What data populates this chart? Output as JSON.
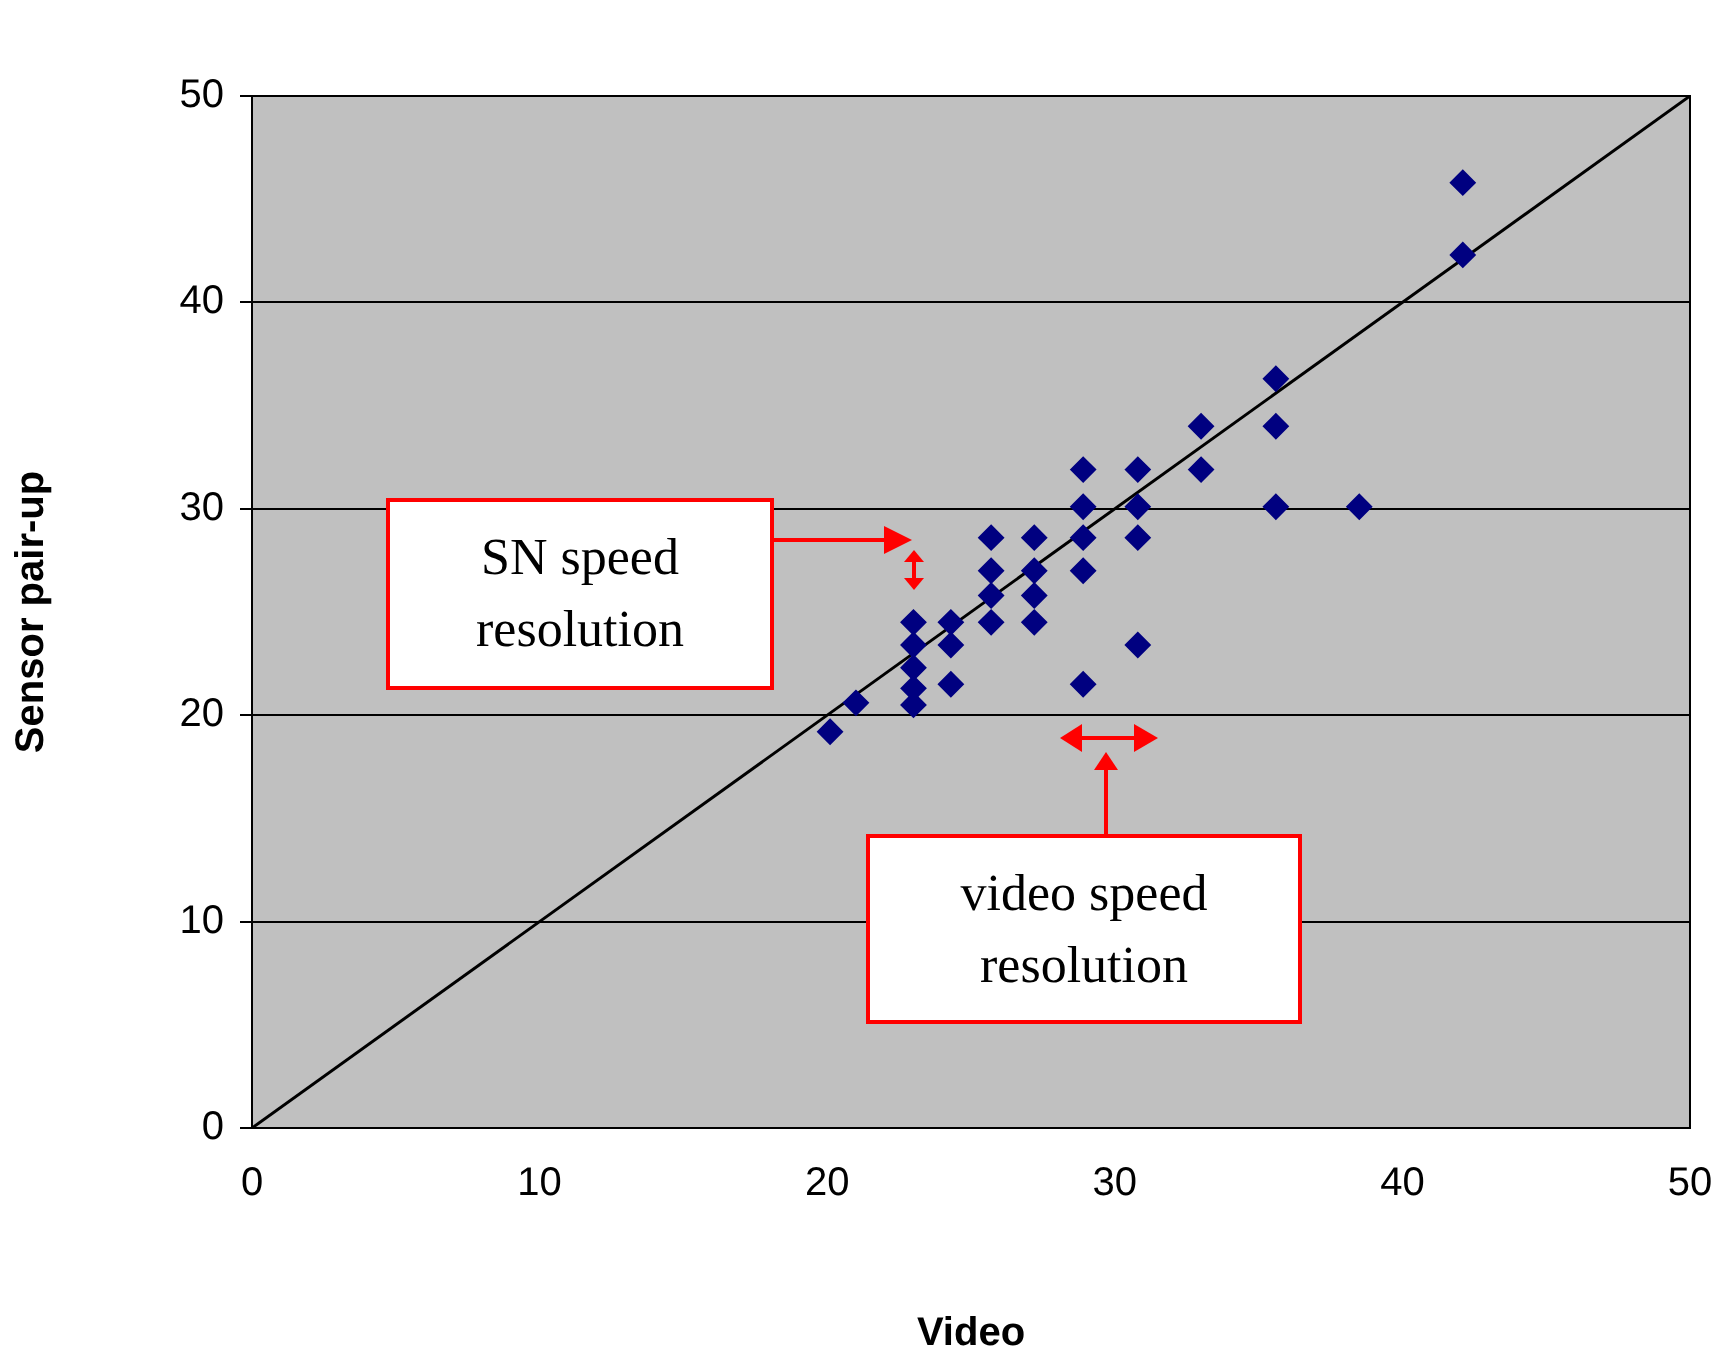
{
  "chart_data": {
    "type": "scatter",
    "xlabel": "Video",
    "ylabel": "Sensor pair-up",
    "x": [
      20.1,
      21.0,
      23.0,
      23.0,
      23.0,
      23.0,
      23.0,
      24.3,
      24.3,
      24.3,
      25.7,
      25.7,
      25.7,
      25.7,
      27.2,
      27.2,
      27.2,
      27.2,
      28.9,
      28.9,
      28.9,
      28.9,
      28.9,
      30.8,
      30.8,
      30.8,
      30.8,
      33.0,
      33.0,
      35.6,
      35.6,
      35.6,
      38.5,
      42.1,
      42.1
    ],
    "series": [
      {
        "color": "#000080",
        "marker": "diamond",
        "values": [
          19.2,
          20.6,
          24.5,
          23.4,
          22.3,
          21.3,
          20.5,
          24.5,
          23.4,
          21.5,
          28.6,
          27.0,
          25.8,
          24.5,
          28.6,
          27.0,
          25.8,
          24.5,
          31.9,
          30.1,
          28.6,
          27.0,
          21.5,
          31.9,
          30.1,
          28.6,
          23.4,
          34.0,
          31.9,
          36.3,
          34.0,
          30.1,
          30.1,
          45.8,
          42.3
        ]
      },
      {
        "type": "line",
        "color": "#000000",
        "marker": "none",
        "x": [
          0,
          50
        ],
        "values": [
          0,
          50
        ]
      }
    ],
    "xlim": [
      0,
      50
    ],
    "ylim": [
      0,
      50
    ],
    "xticks": [
      0,
      10,
      20,
      30,
      40,
      50
    ],
    "yticks": [
      0,
      10,
      20,
      30,
      40,
      50
    ],
    "grid": "y",
    "legend": false,
    "annotations": [
      "SN speed resolution",
      "video speed resolution"
    ]
  }
}
